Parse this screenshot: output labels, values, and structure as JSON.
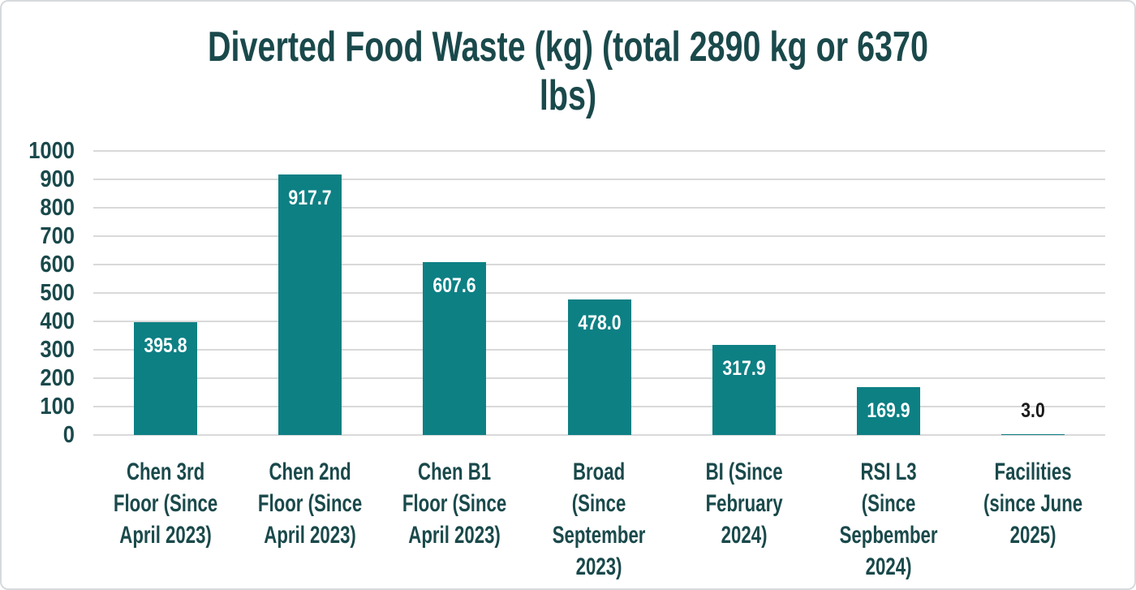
{
  "header": {
    "title_lines": [
      "Diverted Food Waste (kg) (total 2890 kg or 6370",
      "lbs)"
    ]
  },
  "chart_data": {
    "type": "bar",
    "title": "Diverted Food Waste (kg) (total 2890 kg or 6370 lbs)",
    "categories": [
      "Chen 3rd Floor (Since April 2023)",
      "Chen 2nd Floor (Since April 2023)",
      "Chen B1 Floor (Since April 2023)",
      "Broad (Since September 2023)",
      "BI (Since February 2024)",
      "RSI L3 (Since Sepbember 2024)",
      "Facilities (since June 2025)"
    ],
    "x_tick_lines": [
      [
        "Chen 3rd",
        "Floor (Since",
        "April 2023)"
      ],
      [
        "Chen 2nd",
        "Floor (Since",
        "April 2023)"
      ],
      [
        "Chen B1",
        "Floor (Since",
        "April 2023)"
      ],
      [
        "Broad (Since",
        "September",
        "2023)"
      ],
      [
        "BI (Since",
        "February",
        "2024)"
      ],
      [
        "RSI L3",
        "(Since",
        "Sepbember",
        "2024)"
      ],
      [
        "Facilities",
        "(since June",
        "2025)"
      ]
    ],
    "values": [
      395.8,
      917.7,
      607.6,
      478.0,
      317.9,
      169.9,
      3.0
    ],
    "value_labels": [
      "395.8",
      "917.7",
      "607.6",
      "478.0",
      "317.9",
      "169.9",
      "3.0"
    ],
    "xlabel": "",
    "ylabel": "",
    "ylim": [
      0,
      1000
    ],
    "yticks": [
      0,
      100,
      200,
      300,
      400,
      500,
      600,
      700,
      800,
      900,
      1000
    ],
    "grid": true,
    "legend": "none"
  },
  "colors": {
    "bar": "#0d8084",
    "axis_text": "#1a494b",
    "title_text": "#1a494b",
    "grid": "#d9d9d9",
    "value_inside": "#ffffff",
    "value_outside": "#1a1a1a",
    "frame_border": "#d6dadd",
    "background": "#ffffff"
  }
}
